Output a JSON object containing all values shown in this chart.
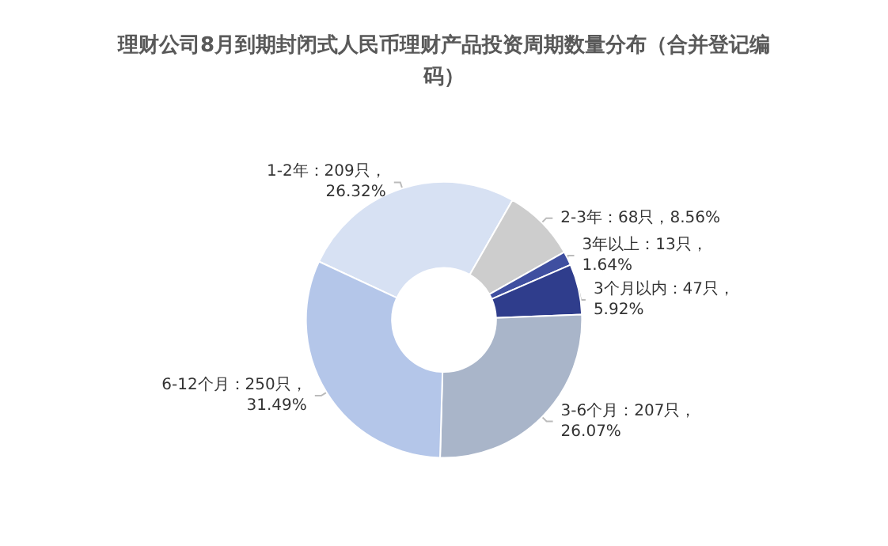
{
  "chart_data": {
    "type": "donut",
    "title": "理财公司8月到期封闭式人民币理财产品投资周期数量分布（合并登记编码）",
    "categories": [
      "1-2年",
      "2-3年",
      "3年以上",
      "3个月以内",
      "3-6个月",
      "6-12个月"
    ],
    "values": [
      26.32,
      8.56,
      1.64,
      5.92,
      26.07,
      31.49
    ],
    "value_labels": [
      "209只，\n26.32%",
      "68只，8.56%",
      "13只，\n1.64%",
      "47只，\n5.92%",
      "207只，\n26.07%",
      "250只，\n31.49%"
    ],
    "colors": [
      "#d7e1f3",
      "#cdcdcd",
      "#3f4fa0",
      "#2f3d8c",
      "#a9b5c9",
      "#b4c6e9"
    ],
    "legend": false
  }
}
